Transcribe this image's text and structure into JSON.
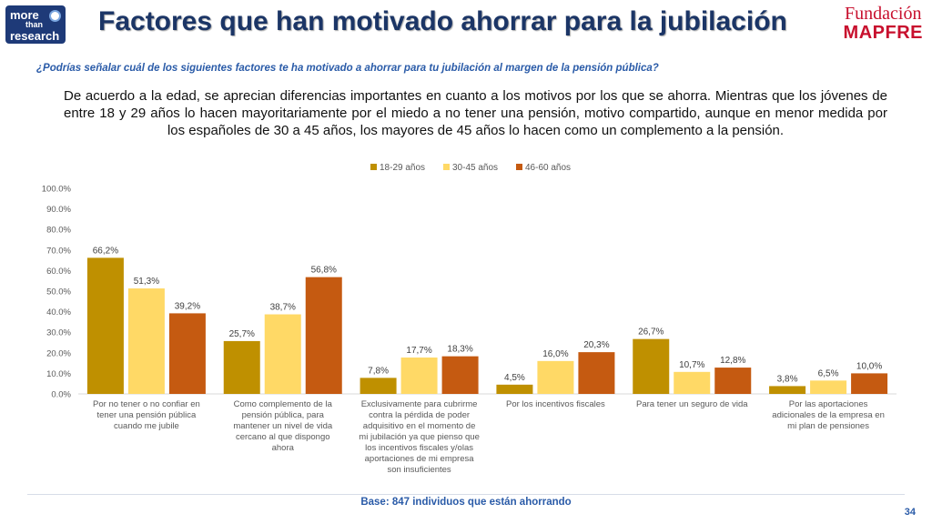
{
  "header": {
    "logo_line1": "more",
    "logo_line2": "than",
    "logo_line3": "research",
    "title": "Factores que han motivado ahorrar para la jubilación",
    "brand_line1": "Fundación",
    "brand_line2": "MAPFRE"
  },
  "question": "¿Podrías señalar cuál de los siguientes factores te ha motivado a ahorrar para tu jubilación al margen de la pensión pública?",
  "summary": "De acuerdo a la edad, se aprecian diferencias importantes en cuanto a los motivos por los que se ahorra. Mientras que los jóvenes de entre 18 y 29 años lo hacen mayoritariamente por el miedo a no tener una pensión, motivo compartido, aunque en menor medida por los españoles de 30 a 45 años, los mayores de 45 años lo hacen como un complemento a la pensión.",
  "footer": {
    "base": "Base: 847 individuos que están ahorrando",
    "page_number": "34"
  },
  "colors": {
    "title": "#1b3566",
    "question": "#2a5ba8",
    "brand": "#c8102e"
  },
  "chart_data": {
    "type": "bar",
    "ylim": [
      0,
      100
    ],
    "yticks": [
      "0.0%",
      "10.0%",
      "20.0%",
      "30.0%",
      "40.0%",
      "50.0%",
      "60.0%",
      "70.0%",
      "80.0%",
      "90.0%",
      "100.0%"
    ],
    "legend_position": "top-center",
    "categories": [
      [
        "Por no tener o no confiar en",
        "tener una pensión pública",
        "cuando me jubile"
      ],
      [
        "Como complemento de la",
        "pensión pública, para",
        "mantener un nivel de vida",
        "cercano al que dispongo",
        "ahora"
      ],
      [
        "Exclusivamente para cubrirme",
        "contra la pérdida de poder",
        "adquisitivo en el momento de",
        "mi jubilación ya que pienso que",
        "los incentivos fiscales y/olas",
        "aportaciones de mi empresa",
        "son insuficientes"
      ],
      [
        "Por los incentivos fiscales"
      ],
      [
        "Para tener un seguro de vida"
      ],
      [
        "Por las aportaciones",
        "adicionales de la empresa en",
        "mi plan de pensiones"
      ]
    ],
    "series": [
      {
        "name": "18-29 años",
        "color": "#bf9000",
        "values": [
          66.2,
          25.7,
          7.8,
          4.5,
          26.7,
          3.8
        ],
        "labels": [
          "66,2%",
          "25,7%",
          "7,8%",
          "4,5%",
          "26,7%",
          "3,8%"
        ]
      },
      {
        "name": "30-45 años",
        "color": "#ffd966",
        "values": [
          51.3,
          38.7,
          17.7,
          16.0,
          10.7,
          6.5
        ],
        "labels": [
          "51,3%",
          "38,7%",
          "17,7%",
          "16,0%",
          "10,7%",
          "6,5%"
        ]
      },
      {
        "name": "46-60 años",
        "color": "#c55a11",
        "values": [
          39.2,
          56.8,
          18.3,
          20.3,
          12.8,
          10.0
        ],
        "labels": [
          "39,2%",
          "56,8%",
          "18,3%",
          "20,3%",
          "12,8%",
          "10,0%"
        ]
      }
    ]
  }
}
